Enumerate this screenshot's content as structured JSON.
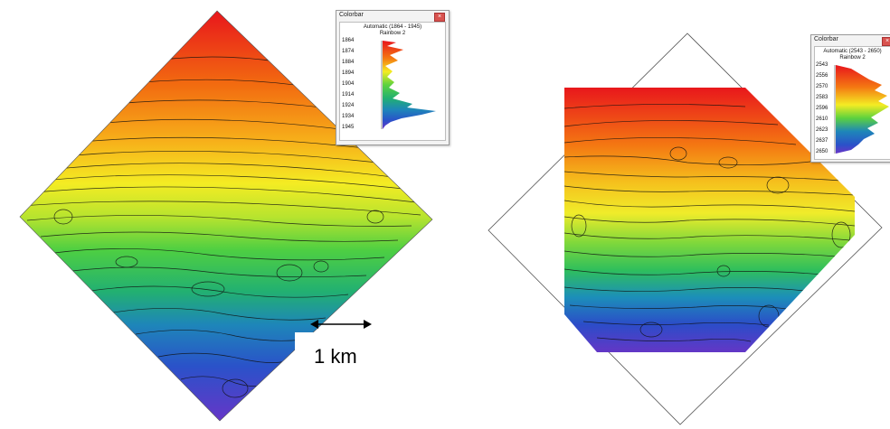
{
  "left_panel": {
    "colorbar": {
      "title": "Colorbar",
      "range_label": "Automatic (1864 - 1945)",
      "palette": "Rainbow 2",
      "ticks": [
        "1864",
        "1874",
        "1884",
        "1894",
        "1904",
        "1914",
        "1924",
        "1934",
        "1945"
      ]
    },
    "scale_label": "1 km"
  },
  "right_panel": {
    "colorbar": {
      "title": "Colorbar",
      "range_label": "Automatic (2543 - 2650)",
      "palette": "Rainbow 2",
      "ticks": [
        "2543",
        "2556",
        "2570",
        "2583",
        "2596",
        "2610",
        "2623",
        "2637",
        "2650"
      ]
    }
  },
  "colors": {
    "rainbow": [
      "#e8141c",
      "#f26a10",
      "#f7b11a",
      "#f4ec23",
      "#c4e82c",
      "#5cd23e",
      "#27b866",
      "#1f90b8",
      "#2a52c9",
      "#6b33c9"
    ],
    "contour": "#111111",
    "window_frame": "#f3f3f3"
  }
}
